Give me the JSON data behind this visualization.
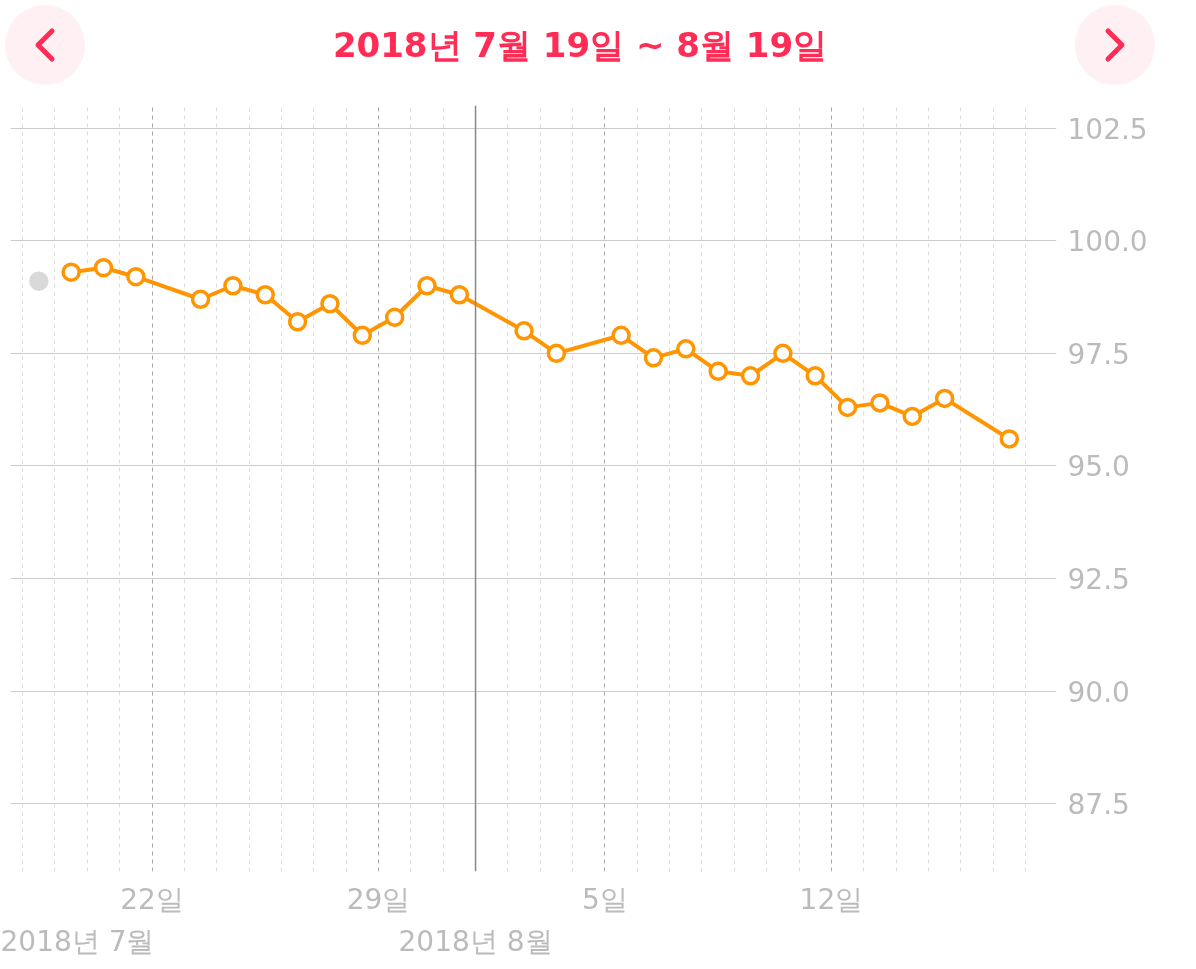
{
  "chart_data": {
    "type": "line",
    "title": "2018년 7월 19일 ~ 8월 19일",
    "series": [
      {
        "color": "#d9d9d9",
        "x": [
          "2018-07-18T12:00"
        ],
        "values": [
          99.1
        ]
      },
      {
        "color": "#ff9500",
        "x": [
          "2018-07-19T12:00",
          "2018-07-20T12:00",
          "2018-07-21T12:00",
          "2018-07-23T12:00",
          "2018-07-24T12:00",
          "2018-07-25T12:00",
          "2018-07-26T12:00",
          "2018-07-27T12:00",
          "2018-07-28T12:00",
          "2018-07-29T12:00",
          "2018-07-30T12:00",
          "2018-07-31T12:00",
          "2018-08-02T12:00",
          "2018-08-03T12:00",
          "2018-08-05T12:00",
          "2018-08-06T12:00",
          "2018-08-07T12:00",
          "2018-08-08T12:00",
          "2018-08-09T12:00",
          "2018-08-10T12:00",
          "2018-08-11T12:00",
          "2018-08-12T12:00",
          "2018-08-13T12:00",
          "2018-08-14T12:00",
          "2018-08-15T12:00",
          "2018-08-17T12:00"
        ],
        "values": [
          99.3,
          99.4,
          99.2,
          98.7,
          99.0,
          98.8,
          98.2,
          98.6,
          97.9,
          98.3,
          99.0,
          98.8,
          98.0,
          97.5,
          97.9,
          97.4,
          97.6,
          97.1,
          97.0,
          97.5,
          97.0,
          96.3,
          96.4,
          96.1,
          96.5,
          95.6
        ]
      }
    ],
    "xlim": [
      "2018-07-17T15:00",
      "2018-08-18T23:00"
    ],
    "xticks": [
      {
        "value": "2018-07-22",
        "label": "22일"
      },
      {
        "value": "2018-07-29",
        "label": "29일"
      },
      {
        "value": "2018-08-05",
        "label": "5일"
      },
      {
        "value": "2018-08-12",
        "label": "12일"
      }
    ],
    "ylim": [
      86.0,
      103.0
    ],
    "yticks": [
      {
        "value": 87.5,
        "label": "87.5"
      },
      {
        "value": 90,
        "label": "90.0"
      },
      {
        "value": 92.5,
        "label": "92.5"
      },
      {
        "value": 95,
        "label": "95.0"
      },
      {
        "value": 97.5,
        "label": "97.5"
      },
      {
        "value": 100,
        "label": "100.0"
      },
      {
        "value": 102.5,
        "label": "102.5"
      }
    ],
    "ref_lines": [
      {
        "axis": "x",
        "value": "2018-08-01",
        "label": "2018년 8월",
        "color": "#888888"
      }
    ],
    "annotations": [
      "2018년 7월"
    ],
    "grid": true,
    "marker": "circle",
    "line_style": "solid"
  }
}
